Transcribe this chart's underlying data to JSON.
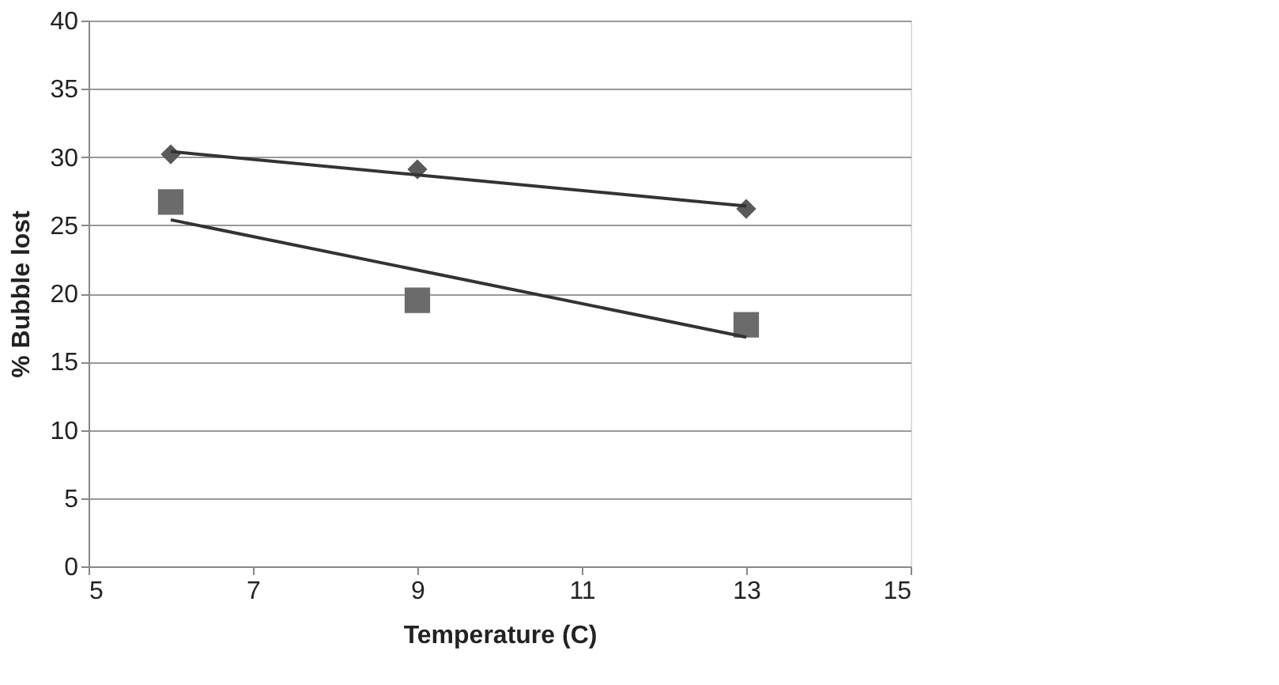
{
  "chart_data": {
    "type": "scatter",
    "xlabel": "Temperature (C)",
    "ylabel": "% Bubble lost",
    "xlim": [
      5,
      15
    ],
    "xticks": [
      5,
      7,
      9,
      11,
      13,
      15
    ],
    "ylim": [
      0,
      40
    ],
    "yticks": [
      0,
      5,
      10,
      15,
      20,
      25,
      30,
      35,
      40
    ],
    "grid": "y",
    "series": [
      {
        "type": "scatter",
        "marker": "diamond",
        "color": "#5a5a5a",
        "x": [
          6,
          9,
          13
        ],
        "values": [
          30.2,
          29.1,
          26.2
        ]
      },
      {
        "type": "scatter",
        "marker": "square",
        "color": "#6b6b6b",
        "x": [
          6,
          9,
          13
        ],
        "values": [
          26.7,
          19.5,
          17.7
        ]
      },
      {
        "type": "line",
        "marker": "none",
        "color": "#333333",
        "x": [
          6,
          13
        ],
        "values": [
          30.4,
          26.4
        ]
      },
      {
        "type": "line",
        "marker": "none",
        "color": "#333333",
        "x": [
          6,
          13
        ],
        "values": [
          25.4,
          16.8
        ]
      }
    ]
  }
}
